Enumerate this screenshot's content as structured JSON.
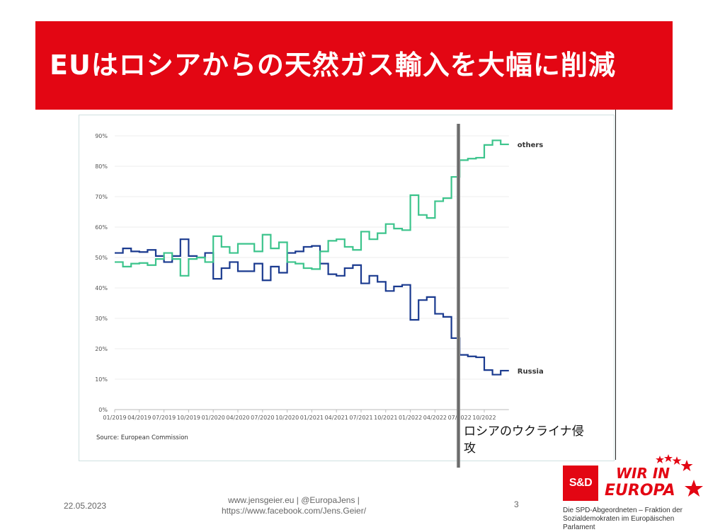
{
  "slide": {
    "title": "EUはロシアからの天然ガス輸入を大幅に削減",
    "annotation": "ロシアのウクライナ侵攻",
    "date": "22.05.2023",
    "links_line1": "www.jensgeier.eu | @EuropaJens |",
    "links_line2": "https://www.facebook.com/Jens.Geier/",
    "page_number": "3",
    "logo_text": "S&D",
    "slogan_line1": "WIR IN",
    "slogan_line2": "EUROPA",
    "caption_line1": "Die SPD-Abgeordneten – Fraktion der",
    "caption_line2": "Sozialdemokraten im Europäischen Parlament",
    "colors": {
      "title_bar": "#e30613",
      "russia": "#1a3a8f",
      "others": "#3cc48c"
    }
  },
  "chart_data": {
    "type": "line",
    "step": true,
    "x_start": "01/2019",
    "x_tick_labels": [
      "01/2019",
      "04/2019",
      "07/2019",
      "10/2019",
      "01/2020",
      "04/2020",
      "07/2020",
      "10/2020",
      "01/2021",
      "04/2021",
      "07/2021",
      "10/2021",
      "01/2022",
      "04/2022",
      "07/2022",
      "10/2022"
    ],
    "y_tick_labels": [
      "0%",
      "10%",
      "20%",
      "30%",
      "40%",
      "50%",
      "60%",
      "70%",
      "80%",
      "90%"
    ],
    "ylim": [
      0,
      90
    ],
    "source": "Source: European Commission",
    "series": [
      {
        "name": "Russia",
        "color": "#1a3a8f",
        "values": [
          51.5,
          53,
          52,
          51.8,
          52.5,
          50.5,
          48.5,
          50.5,
          56,
          50.5,
          50,
          51.5,
          43,
          46.5,
          48.5,
          45.5,
          45.5,
          48,
          42.5,
          47,
          45,
          51.5,
          52,
          53.5,
          53.8,
          48,
          44.5,
          44,
          46.5,
          47.5,
          41.5,
          44,
          42,
          39,
          40.5,
          41,
          29.5,
          36,
          37,
          31.5,
          30.5,
          23.5,
          18,
          17.5,
          17.2,
          13,
          11.5,
          12.8
        ]
      },
      {
        "name": "others",
        "color": "#3cc48c",
        "values": [
          48.5,
          47,
          48,
          48.2,
          47.5,
          49.5,
          51.5,
          49.5,
          44,
          49.5,
          50,
          48.5,
          57,
          53.5,
          51.5,
          54.5,
          54.5,
          52,
          57.5,
          53,
          55,
          48.5,
          48,
          46.5,
          46.2,
          52,
          55.5,
          56,
          53.5,
          52.5,
          58.5,
          56,
          58,
          61,
          59.5,
          59,
          70.5,
          64,
          63,
          68.5,
          69.5,
          76.5,
          82,
          82.5,
          82.8,
          87,
          88.5,
          87.2
        ]
      }
    ]
  }
}
